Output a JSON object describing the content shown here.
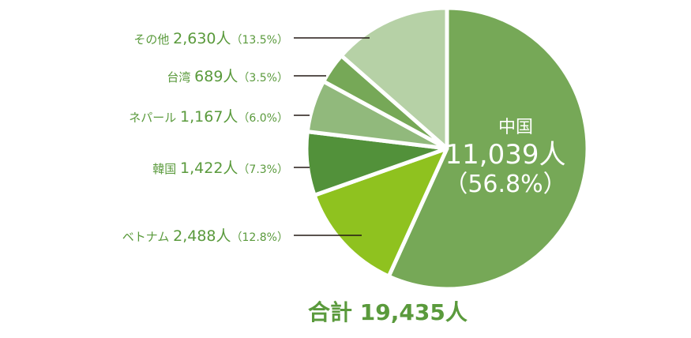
{
  "chart_data": {
    "type": "pie",
    "slices": [
      {
        "name": "中国",
        "value": 11039,
        "value_text": "11,039人",
        "percent_text": "（56.8%）",
        "color": "#76a857"
      },
      {
        "name": "ベトナム",
        "value": 2488,
        "value_text": "2,488人",
        "percent_text": "（12.8%）",
        "color": "#8fc21f"
      },
      {
        "name": "韓国",
        "value": 1422,
        "value_text": "1,422人",
        "percent_text": "（7.3%）",
        "color": "#52913a"
      },
      {
        "name": "ネパール",
        "value": 1167,
        "value_text": "1,167人",
        "percent_text": "（6.0%）",
        "color": "#91b97c"
      },
      {
        "name": "台湾",
        "value": 689,
        "value_text": "689人",
        "percent_text": "（3.5%）",
        "color": "#76a857"
      },
      {
        "name": "その他",
        "value": 2630,
        "value_text": "2,630人",
        "percent_text": "（13.5%）",
        "color": "#b6d1a6"
      }
    ],
    "total_label": "合計",
    "total_value": "19,435人",
    "label_color": "#5a9a3c",
    "leader_color": "#231815"
  }
}
